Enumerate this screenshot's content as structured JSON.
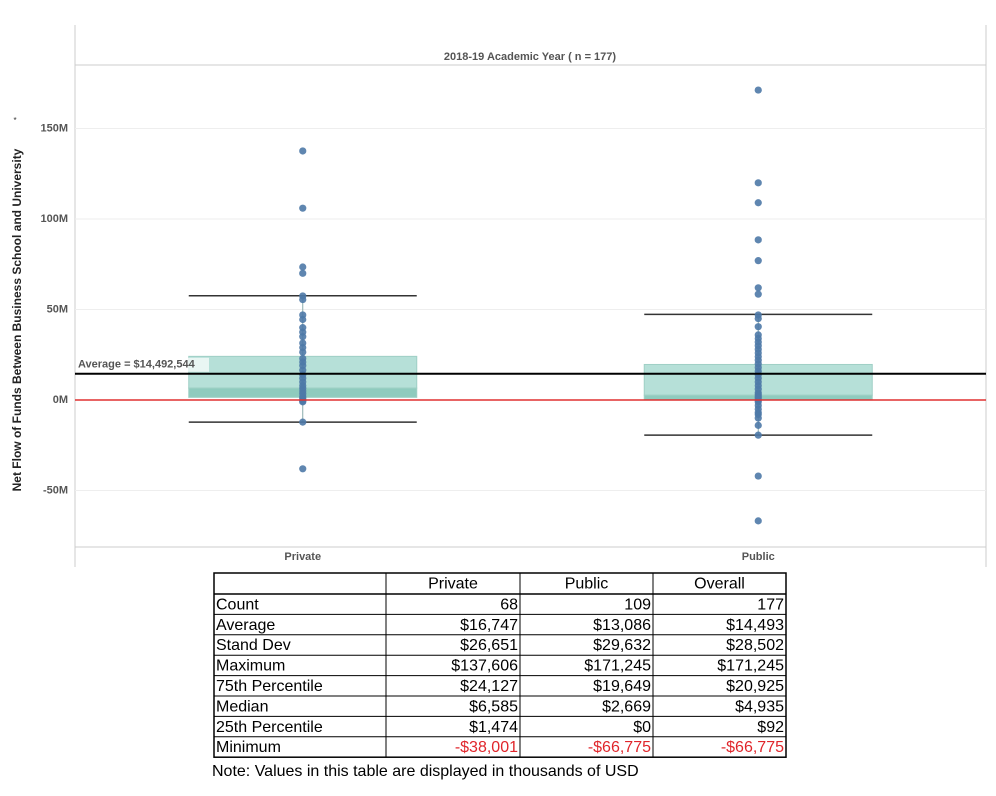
{
  "chart_data": {
    "type": "box",
    "title": "2018-19 Academic Year ( n = 177)",
    "y_label": "Net Flow of Funds Between Business School and University",
    "y_note": "*",
    "categories": [
      "Private",
      "Public"
    ],
    "color": "#4e79a7",
    "box_colors": {
      "lower": "#8fcbbe",
      "upper": "#b6e0d8"
    },
    "boxes": [
      {
        "whisker_low": -12200000,
        "q1": 1474000,
        "median": 6585000,
        "q3": 24127000,
        "whisker_high": 57600000,
        "points": [
          137606000,
          106000000,
          73500000,
          70000000,
          57500000,
          55500000,
          47000000,
          44500000,
          40000000,
          37500000,
          35000000,
          31500000,
          29000000,
          26500000,
          23000000,
          21000000,
          19000000,
          16500000,
          14000000,
          12000000,
          10000000,
          8000000,
          6500000,
          5000000,
          3500000,
          2000000,
          1000000,
          0,
          -500000,
          -1000000,
          -12200000,
          -38001000
        ]
      },
      {
        "whisker_low": -19400000,
        "q1": 0,
        "median": 2669000,
        "q3": 19649000,
        "whisker_high": 47300000,
        "points": [
          171245000,
          120000000,
          109000000,
          88500000,
          77000000,
          62000000,
          58500000,
          47000000,
          45000000,
          40500000,
          36000000,
          34000000,
          32000000,
          30000000,
          28000000,
          26000000,
          24000000,
          22000000,
          20000000,
          18000000,
          16000000,
          14000000,
          12000000,
          10000000,
          8000000,
          6000000,
          4000000,
          3000000,
          2000000,
          1000000,
          0,
          -1000000,
          -3000000,
          -5000000,
          -7000000,
          -8000000,
          -10000000,
          -14000000,
          -19400000,
          -42000000,
          -66775000
        ]
      }
    ],
    "average": 14492544,
    "average_label": "Average = $14,492,544",
    "ylim": [
      -81200000,
      185100000
    ],
    "yticks": [
      {
        "value": -50000000,
        "label": "-50M"
      },
      {
        "value": 0,
        "label": "0M"
      },
      {
        "value": 50000000,
        "label": "50M"
      },
      {
        "value": 100000000,
        "label": "100M"
      },
      {
        "value": 150000000,
        "label": "150M"
      }
    ],
    "grid": true
  },
  "table": {
    "header": [
      "Private",
      "Public",
      "Overall"
    ],
    "rows": [
      [
        "Count",
        "68",
        "109",
        "177"
      ],
      [
        "Average",
        "$16,747",
        "$13,086",
        "$14,493"
      ],
      [
        "Stand Dev",
        "$26,651",
        "$29,632",
        "$28,502"
      ],
      [
        "Maximum",
        "$137,606",
        "$171,245",
        "$171,245"
      ],
      [
        "75th Percentile",
        "$24,127",
        "$19,649",
        "$20,925"
      ],
      [
        "Median",
        "$6,585",
        "$2,669",
        "$4,935"
      ],
      [
        "25th Percentile",
        "$1,474",
        "$0",
        "$92"
      ],
      [
        "Minimum",
        "-$38,001",
        "-$66,775",
        "-$66,775"
      ]
    ],
    "negative_color": "#e0262b",
    "note": "Note: Values in this table are displayed in thousands of USD"
  }
}
